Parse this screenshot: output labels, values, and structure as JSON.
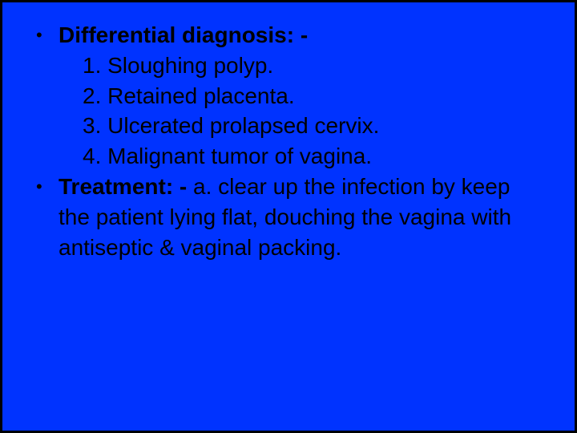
{
  "slide": {
    "background_color": "#0033ff",
    "outer_background": "#000000",
    "text_color": "#000000",
    "font_family": "Arial",
    "font_size_pt": 28,
    "bullets": [
      {
        "heading": "Differential diagnosis: -",
        "sublines": [
          "1. Sloughing polyp.",
          "2. Retained placenta.",
          "3. Ulcerated prolapsed cervix.",
          "4. Malignant tumor of vagina."
        ]
      },
      {
        "heading": "Treatment: -",
        "heading_tail": " a. clear up the infection by keep the patient lying flat, douching the vagina with antiseptic & vaginal packing.",
        "sublines": []
      }
    ]
  }
}
